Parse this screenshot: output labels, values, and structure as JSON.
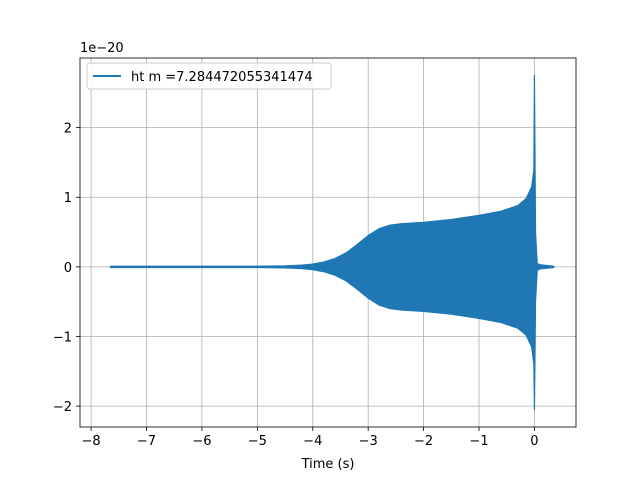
{
  "chart_data": {
    "type": "line",
    "title": "",
    "xlabel": "Time (s)",
    "ylabel": "",
    "offset_label": "1e−20",
    "xlim": [
      -8.2,
      0.75
    ],
    "ylim": [
      -2.3,
      3.0
    ],
    "x_ticks": [
      -8,
      -7,
      -6,
      -5,
      -4,
      -3,
      -2,
      -1,
      0
    ],
    "x_tick_labels": [
      "−8",
      "−7",
      "−6",
      "−5",
      "−4",
      "−3",
      "−2",
      "−1",
      "0"
    ],
    "y_ticks": [
      -2,
      -1,
      0,
      1,
      2
    ],
    "y_tick_labels": [
      "−2",
      "−1",
      "0",
      "1",
      "2"
    ],
    "grid": true,
    "legend_position": "top-left",
    "series": [
      {
        "name": "ht m =7.284472055341474",
        "color": "#1f77b4",
        "envelope_x": [
          -7.65,
          -6.0,
          -5.0,
          -4.5,
          -4.2,
          -4.0,
          -3.8,
          -3.6,
          -3.4,
          -3.2,
          -3.0,
          -2.8,
          -2.6,
          -2.4,
          -2.0,
          -1.5,
          -1.0,
          -0.6,
          -0.3,
          -0.15,
          -0.05,
          -0.01,
          0.0,
          0.02,
          0.05,
          0.1,
          0.35
        ],
        "envelope_upper": [
          0.01,
          0.01,
          0.01,
          0.015,
          0.025,
          0.04,
          0.07,
          0.12,
          0.2,
          0.32,
          0.45,
          0.55,
          0.6,
          0.62,
          0.64,
          0.68,
          0.74,
          0.8,
          0.88,
          0.98,
          1.15,
          1.4,
          2.75,
          0.5,
          0.05,
          0.03,
          0.01
        ],
        "envelope_lower": [
          -0.01,
          -0.01,
          -0.01,
          -0.015,
          -0.025,
          -0.04,
          -0.07,
          -0.12,
          -0.2,
          -0.32,
          -0.45,
          -0.55,
          -0.6,
          -0.62,
          -0.64,
          -0.68,
          -0.74,
          -0.8,
          -0.88,
          -0.98,
          -1.15,
          -1.4,
          -2.05,
          -0.5,
          -0.05,
          -0.03,
          -0.01
        ]
      }
    ]
  }
}
